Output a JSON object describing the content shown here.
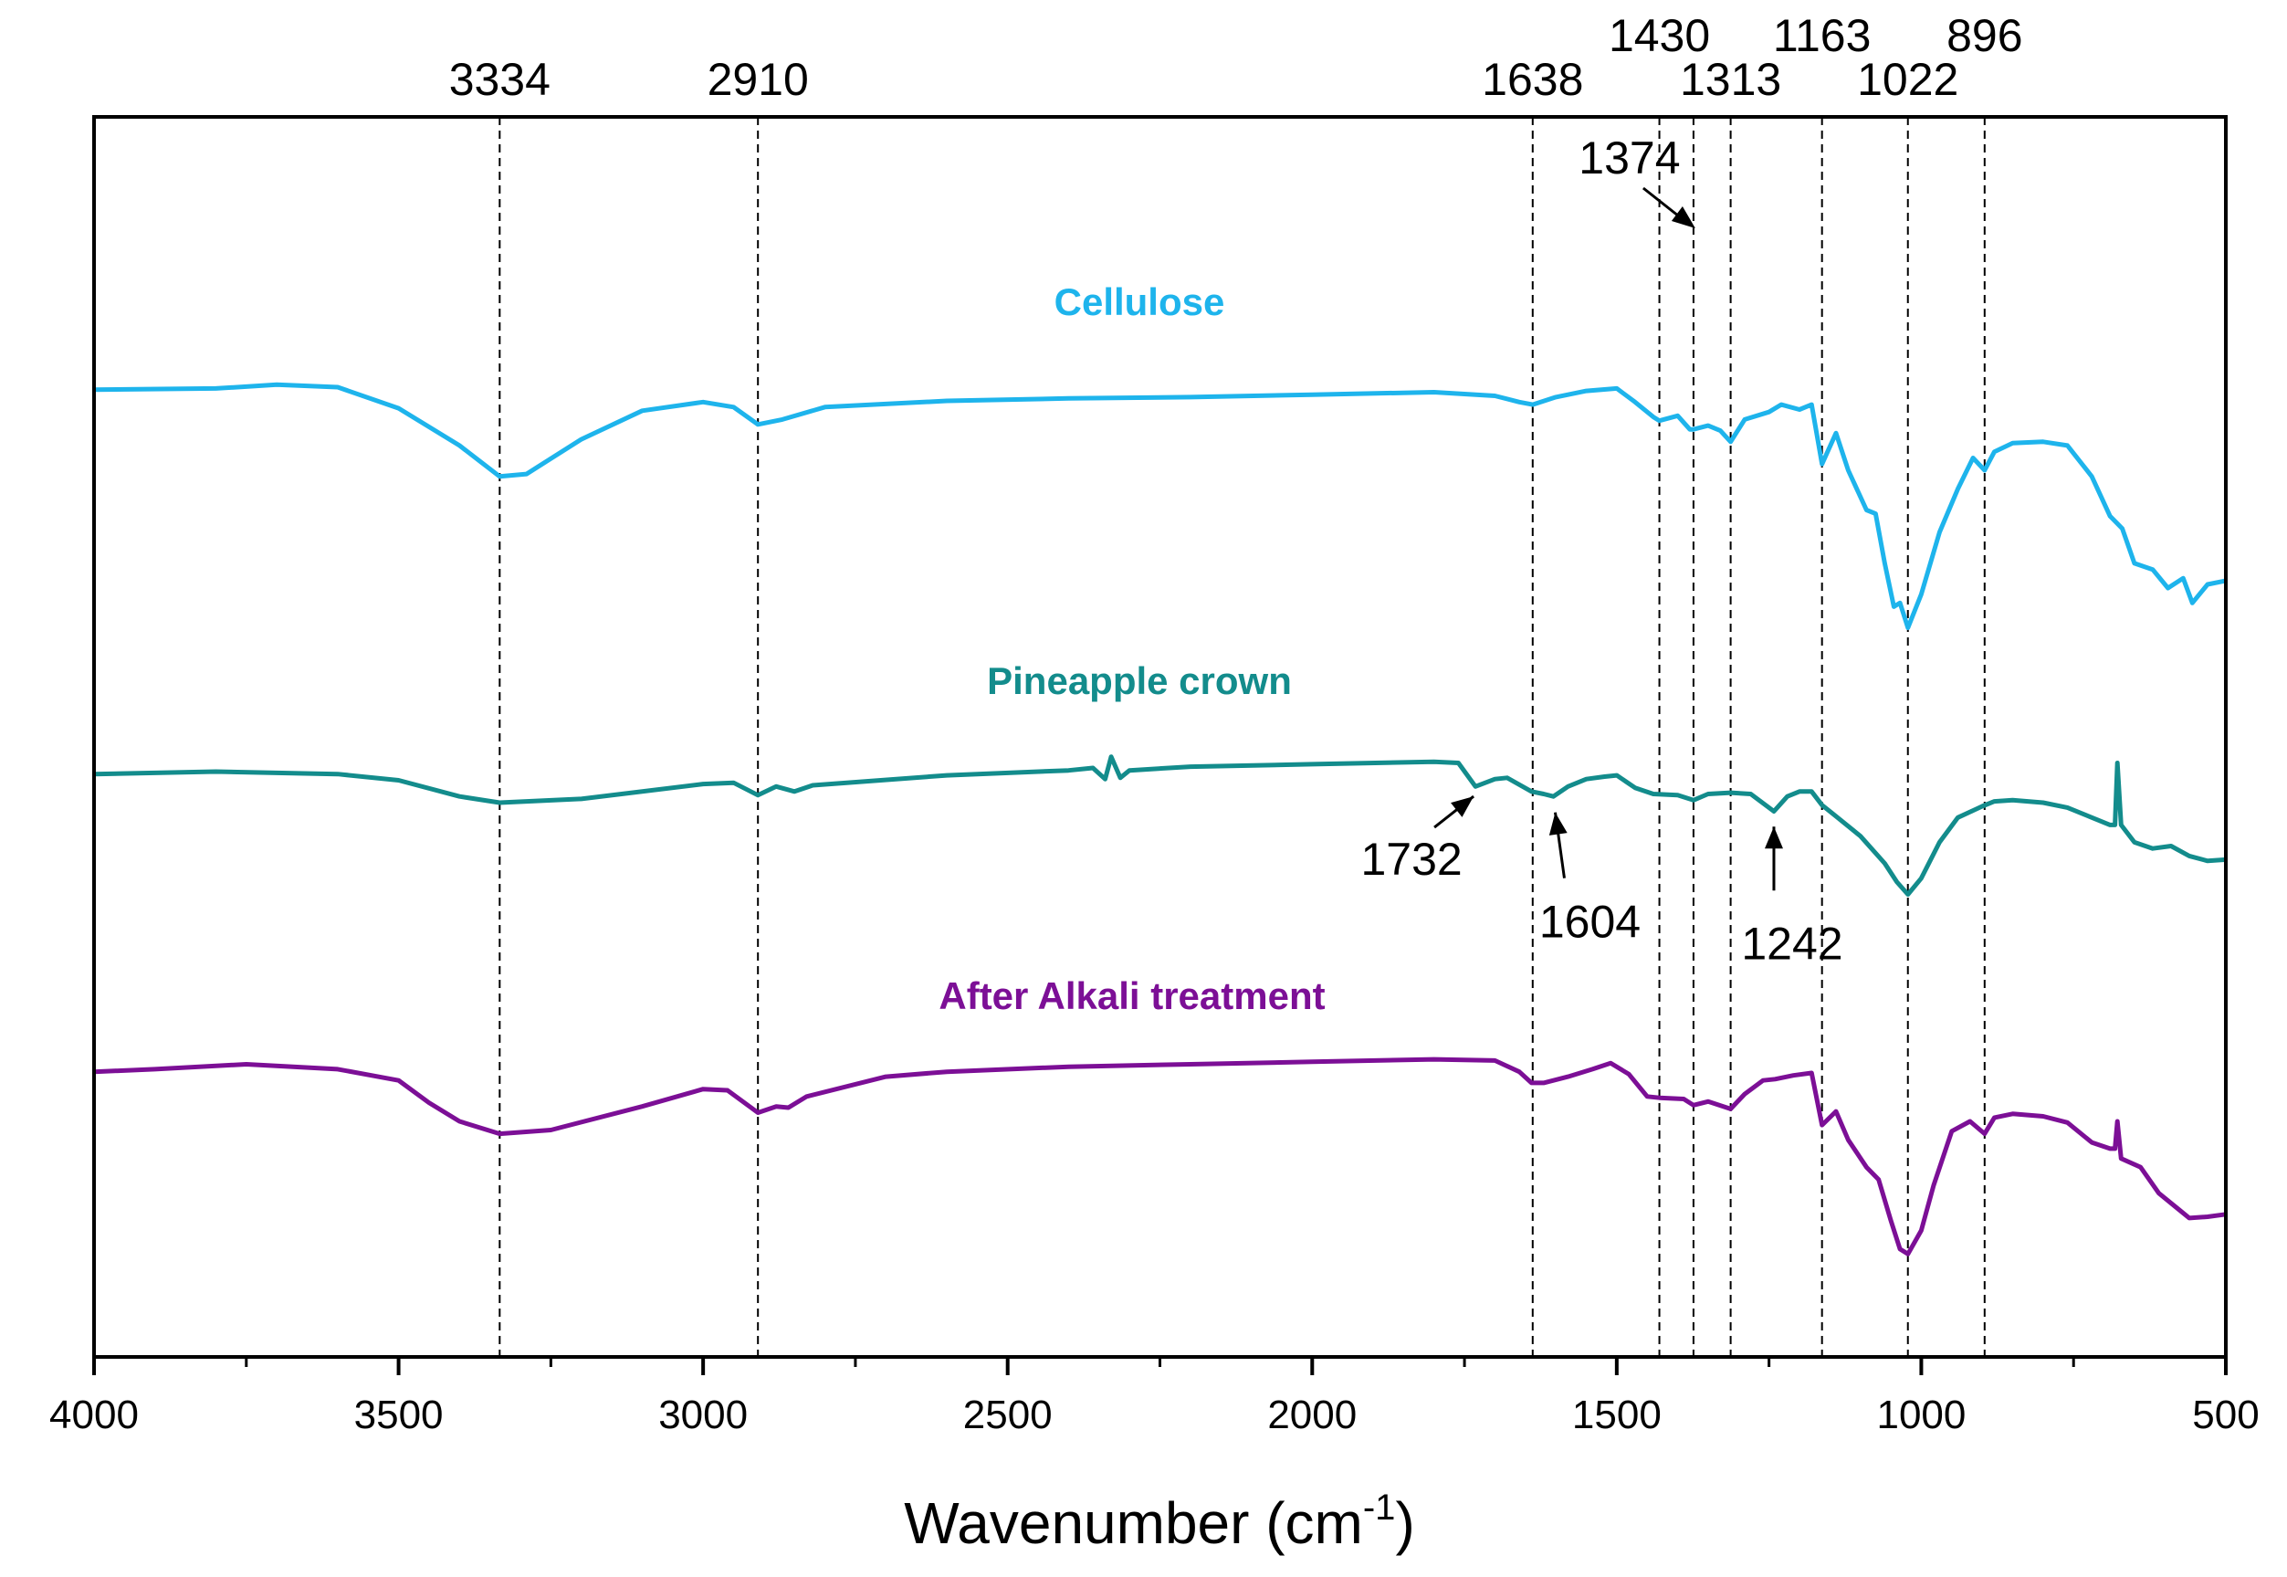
{
  "chart_data": {
    "type": "line",
    "xlabel": "Wavenumber (cm",
    "xlabel_sup": "-1",
    "xlabel_end": ")",
    "ylabel": "",
    "xlim": [
      4000,
      500
    ],
    "ylim": [
      0,
      100
    ],
    "x_ticks": [
      4000,
      3500,
      3000,
      2500,
      2000,
      1500,
      1000,
      500
    ],
    "x_tick_labels": [
      "4000",
      "3500",
      "3000",
      "2500",
      "2000",
      "1500",
      "1000",
      "500"
    ],
    "peak_lines": [
      {
        "x": 3334,
        "label": "3334",
        "row": 1
      },
      {
        "x": 2910,
        "label": "2910",
        "row": 1
      },
      {
        "x": 1638,
        "label": "1638",
        "row": 1
      },
      {
        "x": 1430,
        "label": "1430",
        "row": 0
      },
      {
        "x": 1374,
        "label": "1374",
        "row": 2
      },
      {
        "x": 1313,
        "label": "1313",
        "row": 1
      },
      {
        "x": 1163,
        "label": "1163",
        "row": 0
      },
      {
        "x": 1022,
        "label": "1022",
        "row": 1
      },
      {
        "x": 896,
        "label": "896",
        "row": 0
      }
    ],
    "annotations": [
      {
        "label": "1732",
        "x": 1732,
        "y": 45.5
      },
      {
        "label": "1604",
        "x": 1604,
        "y": 44.5
      },
      {
        "label": "1242",
        "x": 1242,
        "y": 43.5
      }
    ],
    "series": [
      {
        "name": "Cellulose",
        "color": "#1EB4EC",
        "points": [
          [
            4000,
            78.0
          ],
          [
            3800,
            78.1
          ],
          [
            3700,
            78.4
          ],
          [
            3600,
            78.2
          ],
          [
            3500,
            76.5
          ],
          [
            3400,
            73.5
          ],
          [
            3334,
            71.0
          ],
          [
            3290,
            71.2
          ],
          [
            3200,
            74.0
          ],
          [
            3100,
            76.3
          ],
          [
            3000,
            77.0
          ],
          [
            2950,
            76.6
          ],
          [
            2910,
            75.2
          ],
          [
            2870,
            75.6
          ],
          [
            2800,
            76.6
          ],
          [
            2600,
            77.1
          ],
          [
            2400,
            77.3
          ],
          [
            2200,
            77.4
          ],
          [
            2000,
            77.6
          ],
          [
            1800,
            77.8
          ],
          [
            1700,
            77.5
          ],
          [
            1660,
            77.0
          ],
          [
            1638,
            76.8
          ],
          [
            1600,
            77.4
          ],
          [
            1550,
            77.9
          ],
          [
            1500,
            78.1
          ],
          [
            1470,
            77.0
          ],
          [
            1440,
            75.8
          ],
          [
            1430,
            75.5
          ],
          [
            1400,
            75.9
          ],
          [
            1380,
            74.8
          ],
          [
            1374,
            74.8
          ],
          [
            1350,
            75.1
          ],
          [
            1330,
            74.7
          ],
          [
            1313,
            73.8
          ],
          [
            1290,
            75.6
          ],
          [
            1250,
            76.2
          ],
          [
            1230,
            76.8
          ],
          [
            1200,
            76.4
          ],
          [
            1180,
            76.8
          ],
          [
            1163,
            72.0
          ],
          [
            1140,
            74.5
          ],
          [
            1120,
            71.5
          ],
          [
            1090,
            68.3
          ],
          [
            1075,
            68.0
          ],
          [
            1060,
            64.0
          ],
          [
            1045,
            60.5
          ],
          [
            1035,
            60.8
          ],
          [
            1022,
            58.8
          ],
          [
            1000,
            61.5
          ],
          [
            970,
            66.5
          ],
          [
            940,
            70.0
          ],
          [
            915,
            72.5
          ],
          [
            896,
            71.5
          ],
          [
            880,
            73.0
          ],
          [
            850,
            73.7
          ],
          [
            800,
            73.8
          ],
          [
            760,
            73.5
          ],
          [
            720,
            71.0
          ],
          [
            690,
            67.8
          ],
          [
            670,
            66.8
          ],
          [
            650,
            64.0
          ],
          [
            620,
            63.5
          ],
          [
            595,
            62.0
          ],
          [
            570,
            62.8
          ],
          [
            555,
            60.8
          ],
          [
            530,
            62.3
          ],
          [
            500,
            62.6
          ]
        ]
      },
      {
        "name": "Pineapple crown",
        "color": "#138C8C",
        "points": [
          [
            4000,
            47.0
          ],
          [
            3800,
            47.2
          ],
          [
            3600,
            47.0
          ],
          [
            3500,
            46.5
          ],
          [
            3400,
            45.2
          ],
          [
            3334,
            44.7
          ],
          [
            3200,
            45.0
          ],
          [
            3000,
            46.2
          ],
          [
            2950,
            46.3
          ],
          [
            2910,
            45.3
          ],
          [
            2880,
            46.0
          ],
          [
            2850,
            45.6
          ],
          [
            2820,
            46.1
          ],
          [
            2600,
            46.9
          ],
          [
            2400,
            47.3
          ],
          [
            2360,
            47.5
          ],
          [
            2340,
            46.6
          ],
          [
            2330,
            48.4
          ],
          [
            2315,
            46.7
          ],
          [
            2300,
            47.3
          ],
          [
            2200,
            47.6
          ],
          [
            2000,
            47.8
          ],
          [
            1800,
            48.0
          ],
          [
            1760,
            47.9
          ],
          [
            1732,
            46.0
          ],
          [
            1700,
            46.6
          ],
          [
            1680,
            46.7
          ],
          [
            1640,
            45.6
          ],
          [
            1620,
            45.4
          ],
          [
            1604,
            45.2
          ],
          [
            1580,
            46.0
          ],
          [
            1550,
            46.6
          ],
          [
            1520,
            46.8
          ],
          [
            1500,
            46.9
          ],
          [
            1470,
            45.9
          ],
          [
            1440,
            45.4
          ],
          [
            1400,
            45.3
          ],
          [
            1374,
            44.9
          ],
          [
            1350,
            45.4
          ],
          [
            1313,
            45.5
          ],
          [
            1280,
            45.4
          ],
          [
            1242,
            44.0
          ],
          [
            1220,
            45.2
          ],
          [
            1200,
            45.6
          ],
          [
            1180,
            45.6
          ],
          [
            1163,
            44.5
          ],
          [
            1140,
            43.6
          ],
          [
            1100,
            42.0
          ],
          [
            1060,
            39.8
          ],
          [
            1040,
            38.3
          ],
          [
            1022,
            37.3
          ],
          [
            1000,
            38.6
          ],
          [
            970,
            41.5
          ],
          [
            940,
            43.5
          ],
          [
            900,
            44.4
          ],
          [
            880,
            44.8
          ],
          [
            850,
            44.9
          ],
          [
            800,
            44.7
          ],
          [
            760,
            44.3
          ],
          [
            720,
            43.5
          ],
          [
            690,
            42.9
          ],
          [
            682,
            42.9
          ],
          [
            678,
            47.9
          ],
          [
            672,
            42.9
          ],
          [
            650,
            41.5
          ],
          [
            620,
            41.0
          ],
          [
            590,
            41.2
          ],
          [
            560,
            40.4
          ],
          [
            530,
            40.0
          ],
          [
            500,
            40.1
          ]
        ]
      },
      {
        "name": "After Alkali treatment",
        "color": "#7C0F96",
        "points": [
          [
            4000,
            23.0
          ],
          [
            3900,
            23.2
          ],
          [
            3750,
            23.6
          ],
          [
            3600,
            23.2
          ],
          [
            3500,
            22.3
          ],
          [
            3450,
            20.5
          ],
          [
            3400,
            19.0
          ],
          [
            3334,
            18.0
          ],
          [
            3250,
            18.3
          ],
          [
            3100,
            20.2
          ],
          [
            3000,
            21.6
          ],
          [
            2960,
            21.5
          ],
          [
            2910,
            19.7
          ],
          [
            2880,
            20.2
          ],
          [
            2860,
            20.1
          ],
          [
            2830,
            21.0
          ],
          [
            2700,
            22.6
          ],
          [
            2600,
            23.0
          ],
          [
            2400,
            23.4
          ],
          [
            2200,
            23.6
          ],
          [
            2000,
            23.8
          ],
          [
            1800,
            24.0
          ],
          [
            1700,
            23.9
          ],
          [
            1660,
            23.0
          ],
          [
            1640,
            22.1
          ],
          [
            1620,
            22.1
          ],
          [
            1580,
            22.6
          ],
          [
            1540,
            23.2
          ],
          [
            1510,
            23.7
          ],
          [
            1480,
            22.8
          ],
          [
            1450,
            21.0
          ],
          [
            1430,
            20.9
          ],
          [
            1390,
            20.8
          ],
          [
            1374,
            20.3
          ],
          [
            1350,
            20.6
          ],
          [
            1313,
            20.0
          ],
          [
            1290,
            21.2
          ],
          [
            1260,
            22.3
          ],
          [
            1240,
            22.4
          ],
          [
            1210,
            22.7
          ],
          [
            1180,
            22.9
          ],
          [
            1163,
            18.7
          ],
          [
            1140,
            19.8
          ],
          [
            1120,
            17.5
          ],
          [
            1090,
            15.3
          ],
          [
            1070,
            14.3
          ],
          [
            1050,
            11.0
          ],
          [
            1035,
            8.7
          ],
          [
            1022,
            8.3
          ],
          [
            1000,
            10.2
          ],
          [
            980,
            13.8
          ],
          [
            950,
            18.2
          ],
          [
            920,
            19.0
          ],
          [
            896,
            18.0
          ],
          [
            880,
            19.3
          ],
          [
            850,
            19.6
          ],
          [
            800,
            19.4
          ],
          [
            760,
            18.9
          ],
          [
            720,
            17.3
          ],
          [
            690,
            16.8
          ],
          [
            682,
            16.8
          ],
          [
            678,
            19.0
          ],
          [
            672,
            16.0
          ],
          [
            640,
            15.3
          ],
          [
            610,
            13.2
          ],
          [
            580,
            12.0
          ],
          [
            560,
            11.2
          ],
          [
            530,
            11.3
          ],
          [
            500,
            11.5
          ]
        ]
      }
    ]
  },
  "legend": {
    "cellulose": "Cellulose",
    "pineapple": "Pineapple crown",
    "alkali": "After Alkali treatment"
  }
}
